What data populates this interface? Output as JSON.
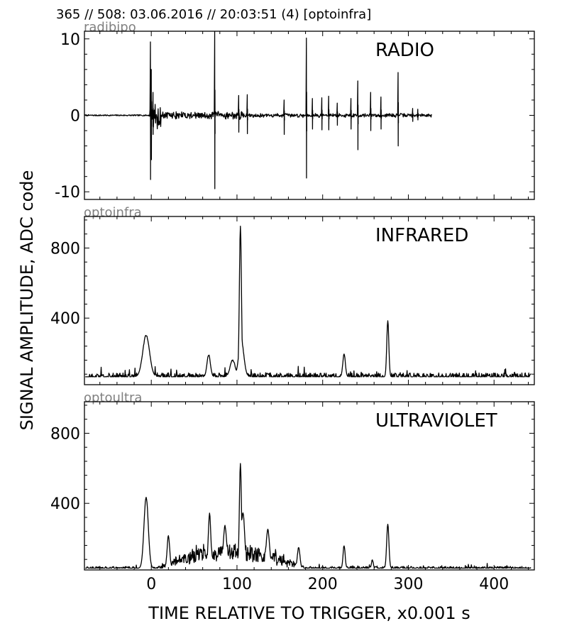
{
  "header": {
    "title": "365 // 508:   03.06.2016 // 20:03:51 (4)  [optoinfra]"
  },
  "axes": {
    "ylabel": "SIGNAL AMPLITUDE,  ADC code",
    "xlabel": "TIME RELATIVE TO TRIGGER,   x0.001 s"
  },
  "chart_data": [
    {
      "type": "line",
      "source_label": "radibipo",
      "panel_label": "RADIO",
      "xlim": [
        -78,
        447
      ],
      "ylim": [
        -11,
        11
      ],
      "xticks": [
        0,
        100,
        200,
        300,
        400
      ],
      "yticks": [
        10,
        0,
        -10
      ],
      "ytick_labels": [
        "10",
        "0",
        "-10"
      ],
      "baseline": 0,
      "signal_end": 327,
      "noise_bursts": [
        {
          "start": -2,
          "end": 12,
          "amp": 1.8
        },
        {
          "start": 12,
          "end": 110,
          "amp": 0.6
        },
        {
          "start": 110,
          "end": 327,
          "amp": 0.3
        }
      ],
      "spikes": [
        {
          "x": -1,
          "up": 9.6,
          "down": -8.4
        },
        {
          "x": 0,
          "up": 6.0,
          "down": -5.8
        },
        {
          "x": 2,
          "up": 3.0,
          "down": -2.5
        },
        {
          "x": 74,
          "up": 11,
          "down": -9.6
        },
        {
          "x": 102,
          "up": 2.6,
          "down": -2.2
        },
        {
          "x": 112,
          "up": 2.7,
          "down": -2.4
        },
        {
          "x": 155,
          "up": 2.0,
          "down": -2.5
        },
        {
          "x": 181,
          "up": 10.1,
          "down": -8.2
        },
        {
          "x": 188,
          "up": 2.2,
          "down": -1.8
        },
        {
          "x": 199,
          "up": 2.3,
          "down": -1.9
        },
        {
          "x": 207,
          "up": 2.5,
          "down": -1.9
        },
        {
          "x": 217,
          "up": 1.6,
          "down": -1.3
        },
        {
          "x": 233,
          "up": 2.2,
          "down": -1.8
        },
        {
          "x": 241,
          "up": 4.5,
          "down": -4.5
        },
        {
          "x": 256,
          "up": 3.0,
          "down": -2.0
        },
        {
          "x": 268,
          "up": 2.4,
          "down": -1.8
        },
        {
          "x": 288,
          "up": 5.6,
          "down": -4.0
        },
        {
          "x": 305,
          "up": 0.9,
          "down": -0.8
        },
        {
          "x": 311,
          "up": 0.8,
          "down": -0.6
        }
      ]
    },
    {
      "type": "line",
      "source_label": "optoinfra",
      "panel_label": "INFRARED",
      "xlim": [
        -78,
        447
      ],
      "ylim": [
        20,
        980
      ],
      "xticks": [
        0,
        100,
        200,
        300,
        400
      ],
      "yticks": [
        800,
        400
      ],
      "ytick_labels": [
        "800",
        "400"
      ],
      "baseline": 65,
      "noise": 22,
      "peaks": [
        {
          "x": -6,
          "height": 300,
          "width": 4
        },
        {
          "x": 67,
          "height": 190,
          "width": 2
        },
        {
          "x": 95,
          "height": 160,
          "width": 3
        },
        {
          "x": 104,
          "height": 925,
          "width": 1.2
        },
        {
          "x": 105,
          "height": 270,
          "width": 3
        },
        {
          "x": 225,
          "height": 195,
          "width": 1.5
        },
        {
          "x": 276,
          "height": 385,
          "width": 1.2
        }
      ]
    },
    {
      "type": "line",
      "source_label": "optoultra",
      "panel_label": "ULTRAVIOLET",
      "xlim": [
        -78,
        447
      ],
      "ylim": [
        20,
        980
      ],
      "xticks": [
        0,
        100,
        200,
        300,
        400
      ],
      "yticks": [
        800,
        400
      ],
      "ytick_labels": [
        "800",
        "400"
      ],
      "baseline": 30,
      "noise": 10,
      "broad_hump": {
        "start": 5,
        "end": 180,
        "level": 150
      },
      "peaks": [
        {
          "x": -6,
          "height": 435,
          "width": 2.5
        },
        {
          "x": 20,
          "height": 215,
          "width": 1.5
        },
        {
          "x": 68,
          "height": 340,
          "width": 1.5
        },
        {
          "x": 86,
          "height": 270,
          "width": 2
        },
        {
          "x": 104,
          "height": 630,
          "width": 1.2
        },
        {
          "x": 107,
          "height": 350,
          "width": 2
        },
        {
          "x": 136,
          "height": 250,
          "width": 2
        },
        {
          "x": 172,
          "height": 150,
          "width": 1.5
        },
        {
          "x": 225,
          "height": 160,
          "width": 1.2
        },
        {
          "x": 258,
          "height": 80,
          "width": 1
        },
        {
          "x": 276,
          "height": 280,
          "width": 1.3
        }
      ]
    }
  ]
}
